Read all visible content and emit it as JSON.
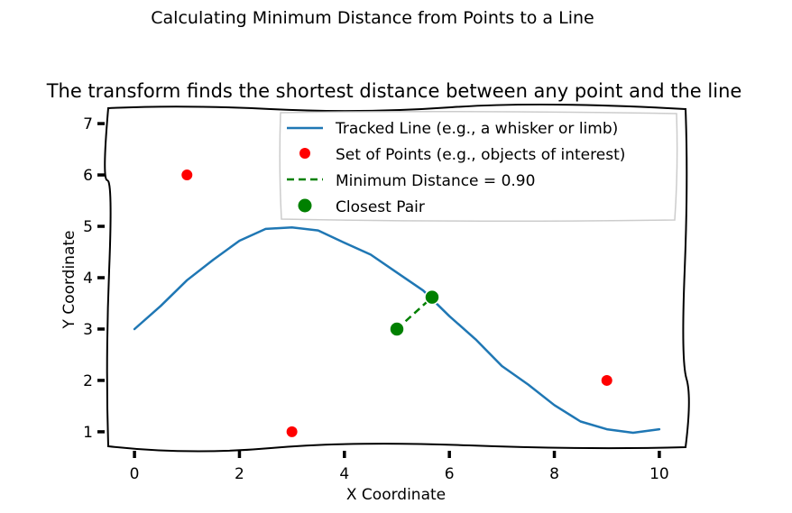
{
  "chart_data": {
    "type": "line",
    "suptitle": "Calculating Minimum Distance from Points to a Line",
    "title": "The transform finds the shortest distance between any point and the line",
    "xlabel": "X Coordinate",
    "ylabel": "Y Coordinate",
    "xlim": [
      -0.5,
      10.5
    ],
    "ylim": [
      0.7,
      7.3
    ],
    "xticks": [
      "0",
      "2",
      "4",
      "6",
      "8",
      "10"
    ],
    "yticks": [
      "1",
      "2",
      "3",
      "4",
      "5",
      "6",
      "7"
    ],
    "grid": false,
    "legend_position": "upper right",
    "series": [
      {
        "name": "Tracked Line (e.g., a whisker or limb)",
        "kind": "line",
        "color": "#1f77b4",
        "x": [
          0,
          0.5,
          1,
          1.5,
          2,
          2.5,
          3,
          3.5,
          4,
          4.5,
          5,
          5.5,
          6,
          6.5,
          7,
          7.5,
          8,
          8.5,
          9,
          9.5,
          10
        ],
        "y": [
          3.0,
          3.45,
          3.95,
          4.35,
          4.72,
          4.95,
          4.98,
          4.92,
          4.68,
          4.45,
          4.1,
          3.75,
          3.25,
          2.8,
          2.28,
          1.92,
          1.52,
          1.2,
          1.05,
          0.98,
          1.05
        ]
      },
      {
        "name": "Set of Points (e.g., objects of interest)",
        "kind": "scatter",
        "color": "#ff0000",
        "x": [
          1,
          3,
          5,
          9
        ],
        "y": [
          6,
          1,
          3,
          2
        ]
      },
      {
        "name": "Minimum Distance = 0.90",
        "kind": "dashed",
        "color": "#008000",
        "x": [
          5,
          5.67
        ],
        "y": [
          3,
          3.62
        ]
      },
      {
        "name": "Closest Pair",
        "kind": "scatter-large",
        "color": "#008000",
        "x": [
          5,
          5.67
        ],
        "y": [
          3,
          3.62
        ]
      }
    ]
  }
}
